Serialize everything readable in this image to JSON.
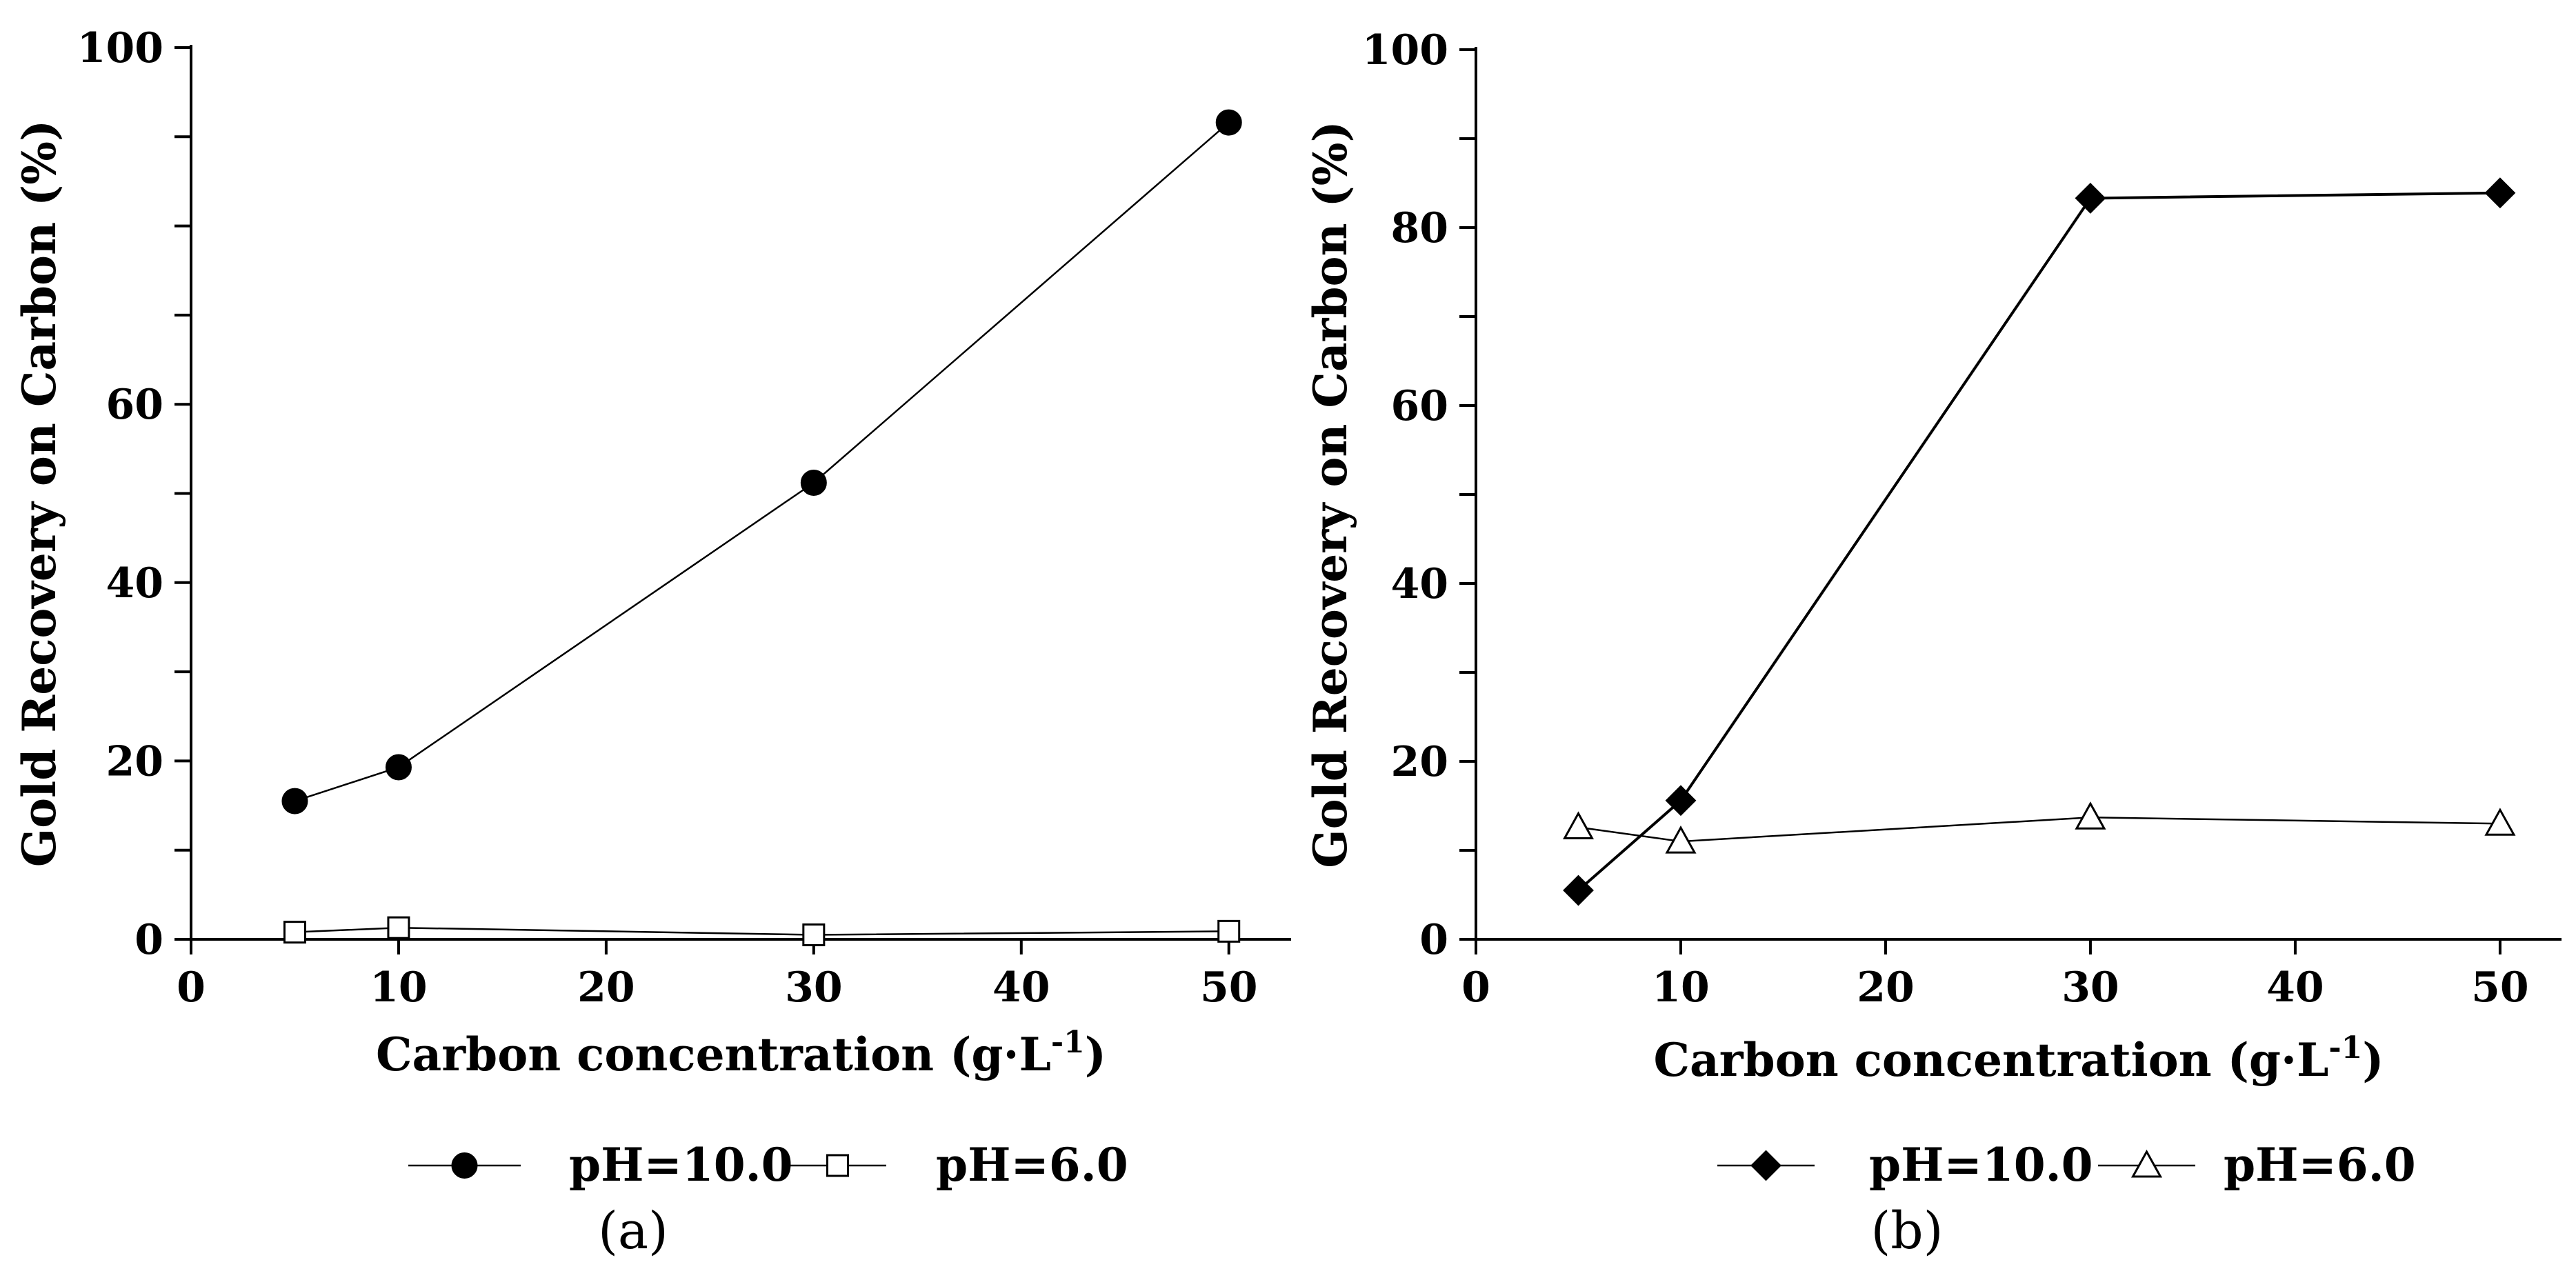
{
  "chart_data": [
    {
      "type": "line",
      "panel_label": "(a)",
      "xlabel": "Carbon concentration (g·L",
      "xlabel_sup": "-1",
      "xlabel_close": ")",
      "ylabel": "Gold Recovery on Carbon (%)",
      "xlim": [
        0,
        53
      ],
      "ylim": [
        0,
        100
      ],
      "xticks": [
        0,
        10,
        20,
        30,
        40,
        50
      ],
      "xticks_labeled": [
        0,
        10,
        20,
        30,
        40,
        50
      ],
      "yticks": [
        0,
        10,
        20,
        30,
        40,
        50,
        60,
        70,
        80,
        90,
        100
      ],
      "yticks_labeled": [
        0,
        20,
        40,
        60,
        100
      ],
      "x": [
        5,
        10,
        30,
        50
      ],
      "series": [
        {
          "name": "pH=10.0",
          "marker": "circle-filled",
          "values": [
            15.5,
            19.3,
            51.2,
            91.6
          ]
        },
        {
          "name": "pH=6.0",
          "marker": "square-open",
          "values": [
            0.8,
            1.3,
            0.5,
            0.9
          ]
        }
      ],
      "legend_position": "bottom"
    },
    {
      "type": "line",
      "panel_label": "(b)",
      "xlabel": "Carbon concentration (g·L",
      "xlabel_sup": "-1",
      "xlabel_close": ")",
      "ylabel": "Gold Recovery on Carbon (%)",
      "xlim": [
        0,
        53
      ],
      "ylim": [
        0,
        100
      ],
      "xticks": [
        0,
        10,
        20,
        30,
        40,
        50
      ],
      "xticks_labeled": [
        0,
        10,
        20,
        30,
        40,
        50
      ],
      "yticks": [
        0,
        10,
        20,
        30,
        40,
        50,
        60,
        70,
        80,
        90,
        100
      ],
      "yticks_labeled": [
        0,
        20,
        40,
        60,
        80,
        100
      ],
      "x": [
        5,
        10,
        30,
        50
      ],
      "series": [
        {
          "name": "pH=10.0",
          "marker": "diamond-filled",
          "values": [
            5.5,
            15.6,
            83.3,
            83.9
          ]
        },
        {
          "name": "pH=6.0",
          "marker": "triangle-open",
          "values": [
            12.6,
            11.0,
            13.7,
            13.0
          ]
        }
      ],
      "legend_position": "bottom"
    }
  ]
}
